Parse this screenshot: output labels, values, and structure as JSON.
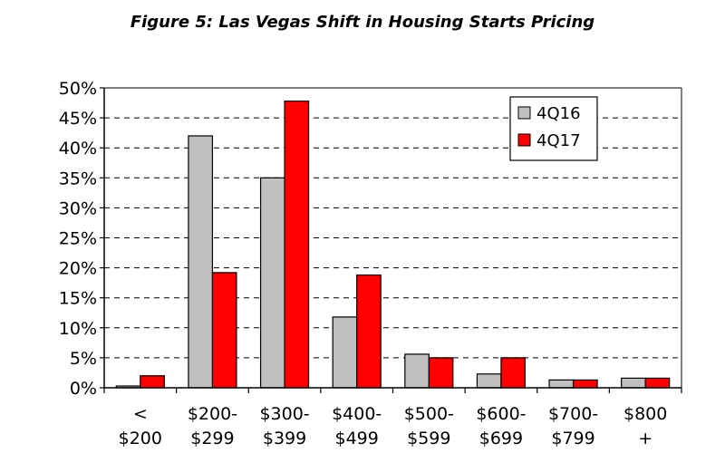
{
  "chart_data": {
    "type": "bar",
    "title": "Figure 5: Las Vegas Shift in Housing Starts Pricing",
    "xlabel": "",
    "ylabel": "",
    "ylim": [
      0,
      50
    ],
    "y_ticks": [
      "0%",
      "5%",
      "10%",
      "15%",
      "20%",
      "25%",
      "30%",
      "35%",
      "40%",
      "45%",
      "50%"
    ],
    "categories": [
      [
        "<",
        "$200"
      ],
      [
        "$200-",
        "$299"
      ],
      [
        "$300-",
        "$399"
      ],
      [
        "$400-",
        "$499"
      ],
      [
        "$500-",
        "$599"
      ],
      [
        "$600-",
        "$699"
      ],
      [
        "$700-",
        "$799"
      ],
      [
        "$800",
        "+"
      ]
    ],
    "series": [
      {
        "name": "4Q16",
        "color": "#c0c0c0",
        "values": [
          0.3,
          42,
          35,
          11.8,
          5.6,
          2.3,
          1.3,
          1.6
        ]
      },
      {
        "name": "4Q17",
        "color": "#ff0000",
        "values": [
          2.0,
          19.2,
          47.8,
          18.8,
          5.0,
          5.0,
          1.3,
          1.6
        ]
      }
    ],
    "grid": true,
    "legend_position": "top-right"
  }
}
